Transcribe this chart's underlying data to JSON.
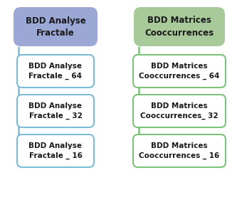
{
  "left_header": "BDD Analyse\nFractale",
  "right_header": "BDD Matrices\nCooccurrences",
  "left_items": [
    "BDD Analyse\nFractale _ 64",
    "BDD Analyse\nFractale _ 32",
    "BDD Analyse\nFractale _ 16"
  ],
  "right_items": [
    "BDD Matrices\nCooccurrences _ 64",
    "BDD Matrices\nCooccurrences_ 32",
    "BDD Matrices\nCooccurrences _ 16"
  ],
  "left_header_color": "#9BA8D5",
  "right_header_color": "#A8C99A",
  "left_box_edge_color": "#7BBCD6",
  "right_box_edge_color": "#7DC47A",
  "left_box_fill": "#FFFFFF",
  "right_box_fill": "#FFFFFF",
  "left_line_color": "#7BBCD6",
  "right_line_color": "#7DC47A",
  "background_color": "#FFFFFF",
  "text_color": "#1A1A1A",
  "font_size_header": 8.5,
  "font_size_item": 7.5
}
